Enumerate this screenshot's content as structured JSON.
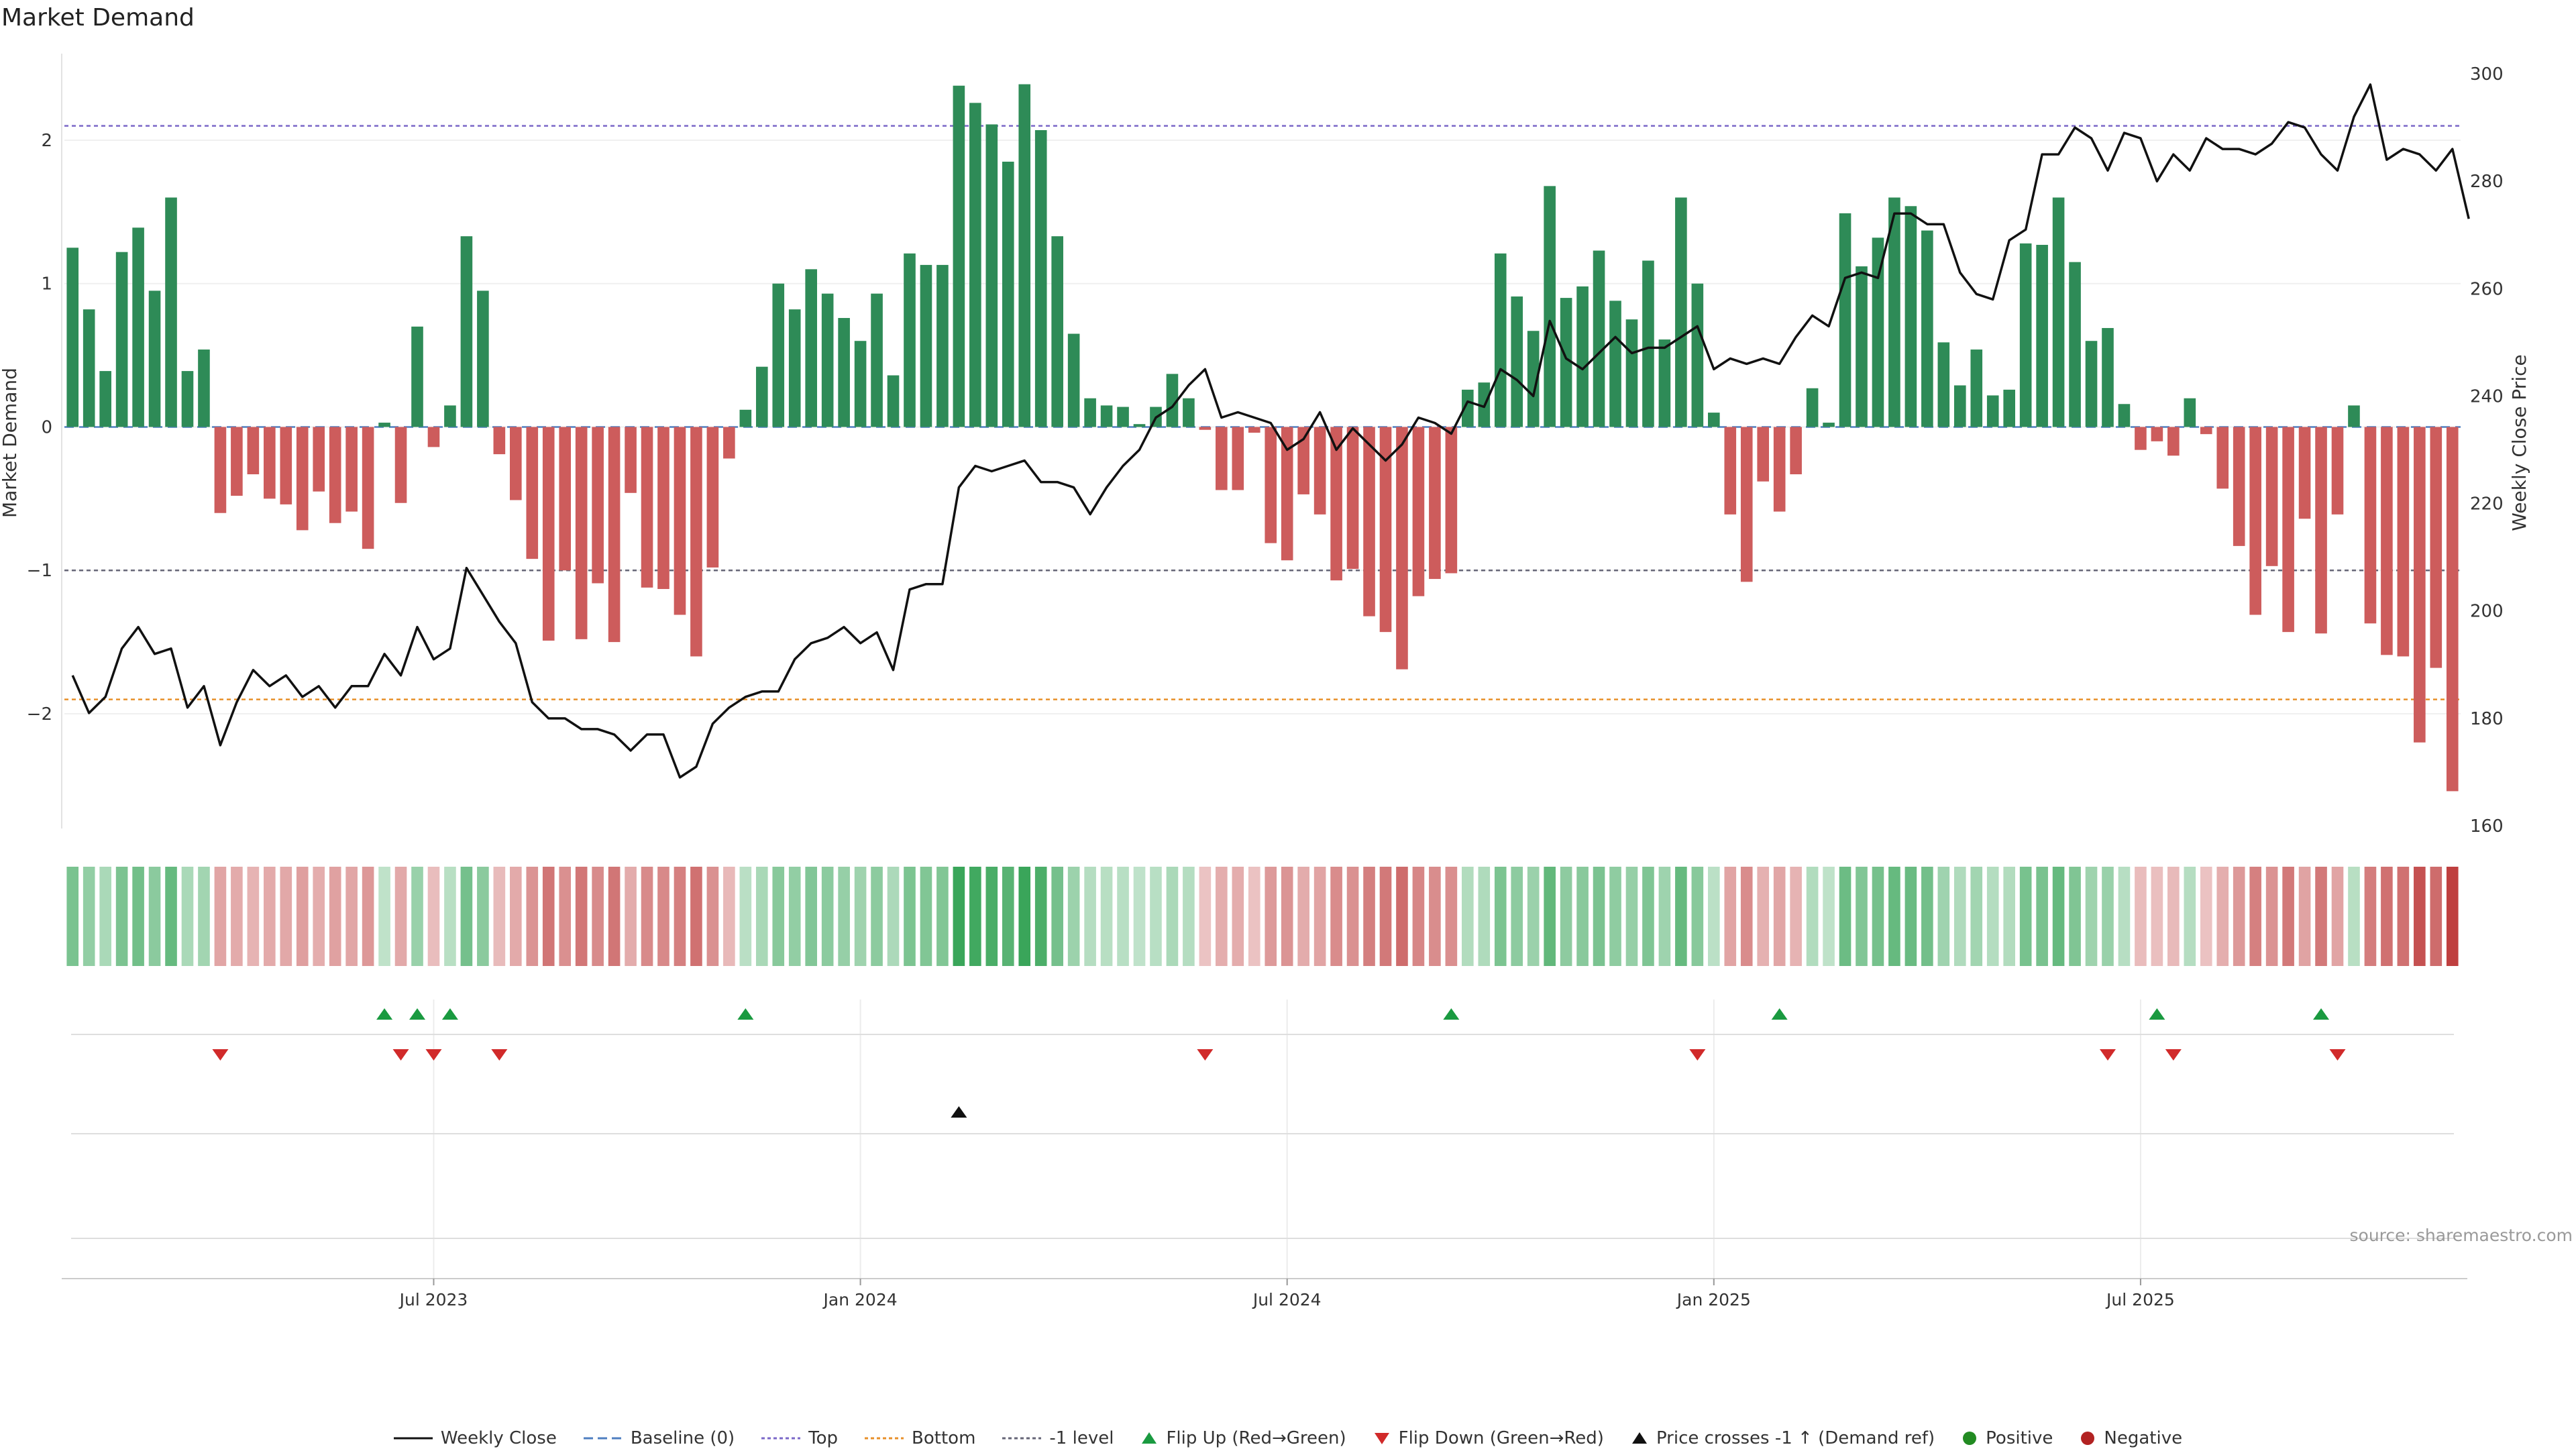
{
  "chart_data": {
    "type": "bar",
    "title": "Market Demand",
    "ylabel_left": "Market Demand",
    "ylabel_right": "Weekly Close Price",
    "y_left_range": [
      -2.8,
      2.65
    ],
    "y_left_ticks": [
      "2",
      "1",
      "0",
      "−1",
      "−2"
    ],
    "y_left_tick_values": [
      2,
      1,
      0,
      -1,
      -2
    ],
    "y_right_range": [
      159.5,
      305.0
    ],
    "y_right_ticks": [
      "300",
      "280",
      "260",
      "240",
      "220",
      "200",
      "180",
      "160"
    ],
    "y_right_tick_values": [
      300,
      280,
      260,
      240,
      220,
      200,
      180,
      160
    ],
    "x_tick_labels": [
      "Jul 2023",
      "Jan 2024",
      "Jul 2024",
      "Jan 2025",
      "Jul 2025"
    ],
    "x_tick_week_index": [
      22,
      48,
      74,
      100,
      126
    ],
    "reference_lines": {
      "top": 2.1,
      "bottom": -1.9,
      "minus_one": -1.0,
      "baseline": 0
    },
    "demand": [
      1.25,
      0.82,
      0.39,
      1.22,
      1.39,
      0.95,
      1.6,
      0.39,
      0.54,
      -0.6,
      -0.48,
      -0.33,
      -0.5,
      -0.54,
      -0.72,
      -0.45,
      -0.67,
      -0.59,
      -0.85,
      0.03,
      -0.53,
      0.7,
      -0.14,
      0.15,
      1.33,
      0.95,
      -0.19,
      -0.51,
      -0.92,
      -1.49,
      -1.0,
      -1.48,
      -1.09,
      -1.5,
      -0.46,
      -1.12,
      -1.13,
      -1.31,
      -1.6,
      -0.98,
      -0.22,
      0.12,
      0.42,
      1.0,
      0.82,
      1.1,
      0.93,
      0.76,
      0.6,
      0.93,
      0.36,
      1.21,
      1.13,
      1.13,
      2.38,
      2.26,
      2.11,
      1.85,
      2.39,
      2.07,
      1.33,
      0.65,
      0.2,
      0.15,
      0.14,
      0.02,
      0.14,
      0.37,
      0.2,
      -0.02,
      -0.44,
      -0.44,
      -0.04,
      -0.81,
      -0.93,
      -0.47,
      -0.61,
      -1.07,
      -0.99,
      -1.32,
      -1.43,
      -1.69,
      -1.18,
      -1.06,
      -1.02,
      0.26,
      0.31,
      1.21,
      0.91,
      0.67,
      1.68,
      0.9,
      0.98,
      1.23,
      0.88,
      0.75,
      1.16,
      0.61,
      1.6,
      1.0,
      0.1,
      -0.61,
      -1.08,
      -0.38,
      -0.59,
      -0.33,
      0.27,
      0.03,
      1.49,
      1.12,
      1.32,
      1.6,
      1.54,
      1.37,
      0.59,
      0.29,
      0.54,
      0.22,
      0.26,
      1.28,
      1.27,
      1.6,
      1.15,
      0.6,
      0.69,
      0.16,
      -0.16,
      -0.1,
      -0.2,
      0.2,
      -0.05,
      -0.43,
      -0.83,
      -1.31,
      -0.97,
      -1.43,
      -0.64,
      -1.44,
      -0.61,
      0.15,
      -1.37,
      -1.59,
      -1.6,
      -2.2,
      -1.68,
      -2.54
    ],
    "weekly_close": [
      188,
      181,
      184,
      193,
      197,
      192,
      193,
      182,
      186,
      175,
      183,
      189,
      186,
      188,
      184,
      186,
      182,
      186,
      186,
      192,
      188,
      197,
      191,
      193,
      208,
      203,
      198,
      194,
      183,
      180,
      180,
      178,
      178,
      177,
      174,
      177,
      177,
      169,
      171,
      179,
      182,
      184,
      185,
      185,
      191,
      194,
      195,
      197,
      194,
      196,
      189,
      204,
      205,
      205,
      223,
      227,
      226,
      227,
      228,
      224,
      224,
      223,
      218,
      223,
      227,
      230,
      236,
      238,
      242,
      245,
      236,
      237,
      236,
      235,
      230,
      232,
      237,
      230,
      234,
      231,
      228,
      231,
      236,
      235,
      233,
      239,
      238,
      245,
      243,
      240,
      254,
      247,
      245,
      248,
      251,
      248,
      249,
      249,
      251,
      253,
      245,
      247,
      246,
      247,
      246,
      251,
      255,
      253,
      262,
      263,
      262,
      274,
      274,
      272,
      272,
      263,
      259,
      258,
      269,
      271,
      285,
      285,
      290,
      288,
      282,
      289,
      288,
      280,
      285,
      282,
      288,
      286,
      286,
      285,
      287,
      291,
      290,
      285,
      282,
      292,
      298,
      284,
      286,
      285,
      282,
      286,
      273
    ],
    "flip_up_weeks": [
      19,
      21,
      23,
      41,
      84,
      104,
      127,
      137
    ],
    "flip_down_weeks": [
      9,
      20,
      22,
      26,
      69,
      99,
      124,
      128,
      138
    ],
    "price_cross_weeks": [
      54
    ],
    "source": "source: sharemaestro.com",
    "legend": [
      {
        "key": "weekly_close",
        "label": "Weekly Close"
      },
      {
        "key": "baseline",
        "label": "Baseline (0)"
      },
      {
        "key": "top",
        "label": "Top"
      },
      {
        "key": "bottom",
        "label": "Bottom"
      },
      {
        "key": "minus_one",
        "label": "-1 level"
      },
      {
        "key": "flip_up",
        "label": "Flip Up (Red→Green)"
      },
      {
        "key": "flip_down",
        "label": "Flip Down (Green→Red)"
      },
      {
        "key": "price_cross",
        "label": "Price crosses -1 ↑ (Demand ref)"
      },
      {
        "key": "positive",
        "label": "Positive"
      },
      {
        "key": "negative",
        "label": "Negative"
      }
    ]
  },
  "colors": {
    "positive": "#2e8b57",
    "negative": "#cd5c5c",
    "price_line": "#111111",
    "top_line": "#7b68c8",
    "bottom_line": "#e8902a",
    "minus_one_line": "#666677",
    "baseline": "#4f7fc0",
    "flip_up": "#1a9a40",
    "flip_down": "#d12a2a",
    "price_cross": "#111111",
    "positive_dot": "#228b22",
    "negative_dot": "#b22222"
  }
}
